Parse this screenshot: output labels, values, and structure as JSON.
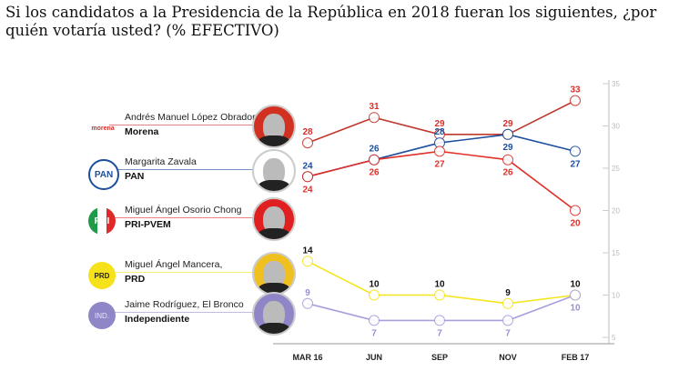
{
  "title": "Si los candidatos a la Presidencia de la República en 2018 fueran los siguientes, ¿por quién votaría usted? (% EFECTIVO)",
  "candidates": [
    {
      "name": "Andrés Manuel López Obrador",
      "party": "Morena",
      "logo_text": "morena",
      "color": "#c62f2a",
      "photo_bg": "#d23020"
    },
    {
      "name": "Margarita Zavala",
      "party": "PAN",
      "logo_text": "PAN",
      "color": "#1d4f9e",
      "photo_bg": "#ffffff"
    },
    {
      "name": "Miguel Ángel Osorio Chong",
      "party": "PRI-PVEM",
      "logo_text": "PRI",
      "color": "#e0302a",
      "photo_bg": "#e02020"
    },
    {
      "name": "Miguel Ángel Mancera,",
      "party": "PRD",
      "logo_text": "PRD",
      "color": "#f4e51c",
      "photo_bg": "#f0c020"
    },
    {
      "name": "Jaime Rodríguez, El Bronco",
      "party": "Independiente",
      "logo_text": "IND.",
      "color": "#9a8fd2",
      "photo_bg": "#8f86c8"
    }
  ],
  "chart_data": {
    "type": "line",
    "title": "Si los candidatos a la Presidencia de la República en 2018 fueran los siguientes, ¿por quién votaría usted? (% EFECTIVO)",
    "categories": [
      "MAR 16",
      "JUN",
      "SEP",
      "NOV",
      "FEB 17"
    ],
    "ylim": [
      5,
      35
    ],
    "yticks": [
      "35",
      "30",
      "25",
      "20",
      "15",
      "10",
      "5"
    ],
    "yaxis_position": "right",
    "grid": false,
    "series": [
      {
        "name": "Morena",
        "values": [
          28,
          31,
          29,
          29,
          33
        ],
        "line_color": "#c0392f",
        "label_color": "#d8312b"
      },
      {
        "name": "PAN",
        "values": [
          24,
          26,
          28,
          29,
          27
        ],
        "line_color": "#1d4f9e",
        "label_color": "#1d4f9e"
      },
      {
        "name": "PRI-PVEM",
        "values": [
          24,
          26,
          27,
          26,
          20
        ],
        "line_color": "#e0302a",
        "label_color": "#e0302a"
      },
      {
        "name": "PRD",
        "values": [
          14,
          10,
          10,
          9,
          10
        ],
        "line_color": "#f4e51c",
        "label_color": "#111111"
      },
      {
        "name": "Independiente",
        "values": [
          9,
          7,
          7,
          7,
          10
        ],
        "line_color": "#a99fdc",
        "label_color": "#9a8fd2"
      }
    ]
  }
}
